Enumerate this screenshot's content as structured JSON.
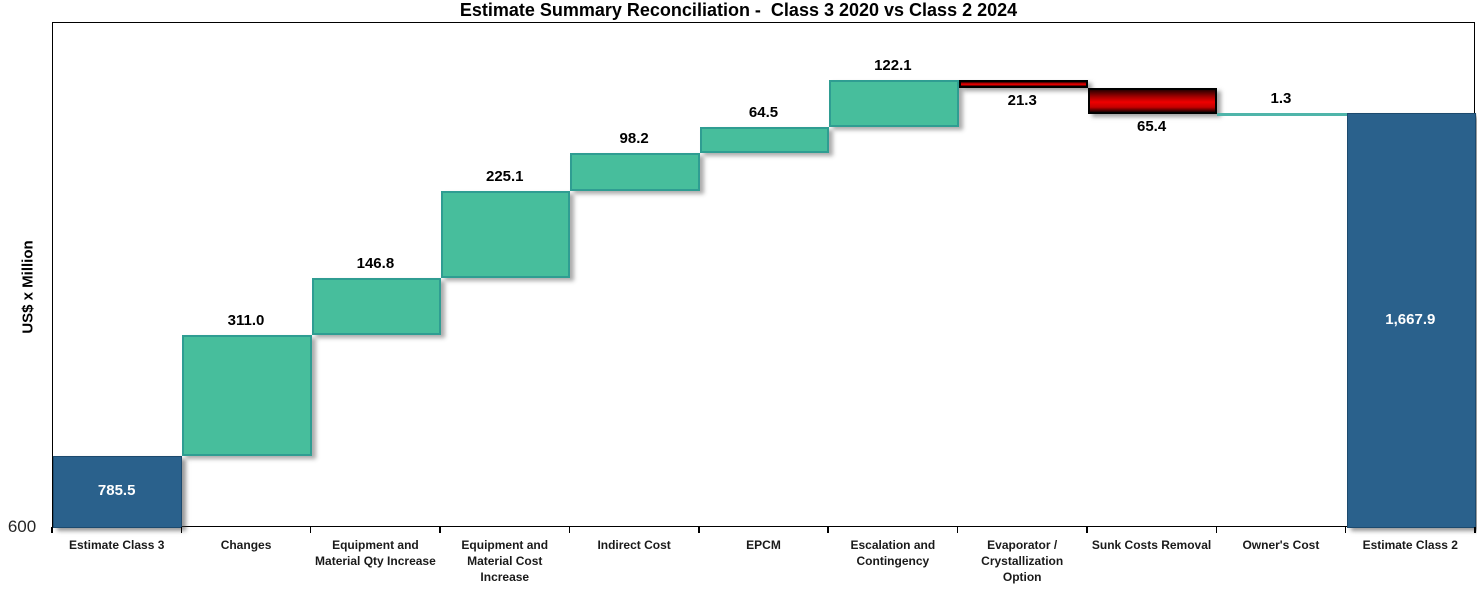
{
  "title": "Estimate Summary Reconciliation -  Class 3 2020 vs Class 2 2024",
  "y_axis": {
    "label": "US$ x Million",
    "tick_label": "600"
  },
  "chart_data": {
    "type": "bar",
    "subtype": "waterfall",
    "title": "Estimate Summary Reconciliation -  Class 3 2020 vs Class 2 2024",
    "ylabel": "US$ x Million",
    "xlabel": "",
    "ylim": [
      600,
      1900
    ],
    "grid": false,
    "legend": "none",
    "baseline": 600,
    "categories": [
      "Estimate Class 3",
      "Changes",
      "Equipment and Material Qty Increase",
      "Equipment and Material Cost Increase",
      "Indirect Cost",
      "EPCM",
      "Escalation and Contingency",
      "Evaporator / Crystallization Option",
      "Sunk Costs Removal",
      "Owner's Cost",
      "Estimate Class 2"
    ],
    "values": [
      785.5,
      311.0,
      146.8,
      225.1,
      98.2,
      64.5,
      122.1,
      -21.3,
      -65.4,
      1.3,
      1667.9
    ],
    "value_labels": [
      "785.5",
      "311.0",
      "146.8",
      "225.1",
      "98.2",
      "64.5",
      "122.1",
      "21.3",
      "65.4",
      "1.3",
      "1,667.9"
    ],
    "bar_types": [
      "total",
      "increase",
      "increase",
      "increase",
      "increase",
      "increase",
      "increase",
      "decrease",
      "decrease",
      "increase",
      "total"
    ],
    "colors": {
      "total_fill": "#2A618C",
      "total_border": "#1C4A6E",
      "increase_fill": "#47BE9C",
      "increase_border": "#2F9D92",
      "decrease_fill_bright": "#EE0000",
      "decrease_fill_dark": "#2B0000",
      "decrease_border": "#000000"
    }
  }
}
